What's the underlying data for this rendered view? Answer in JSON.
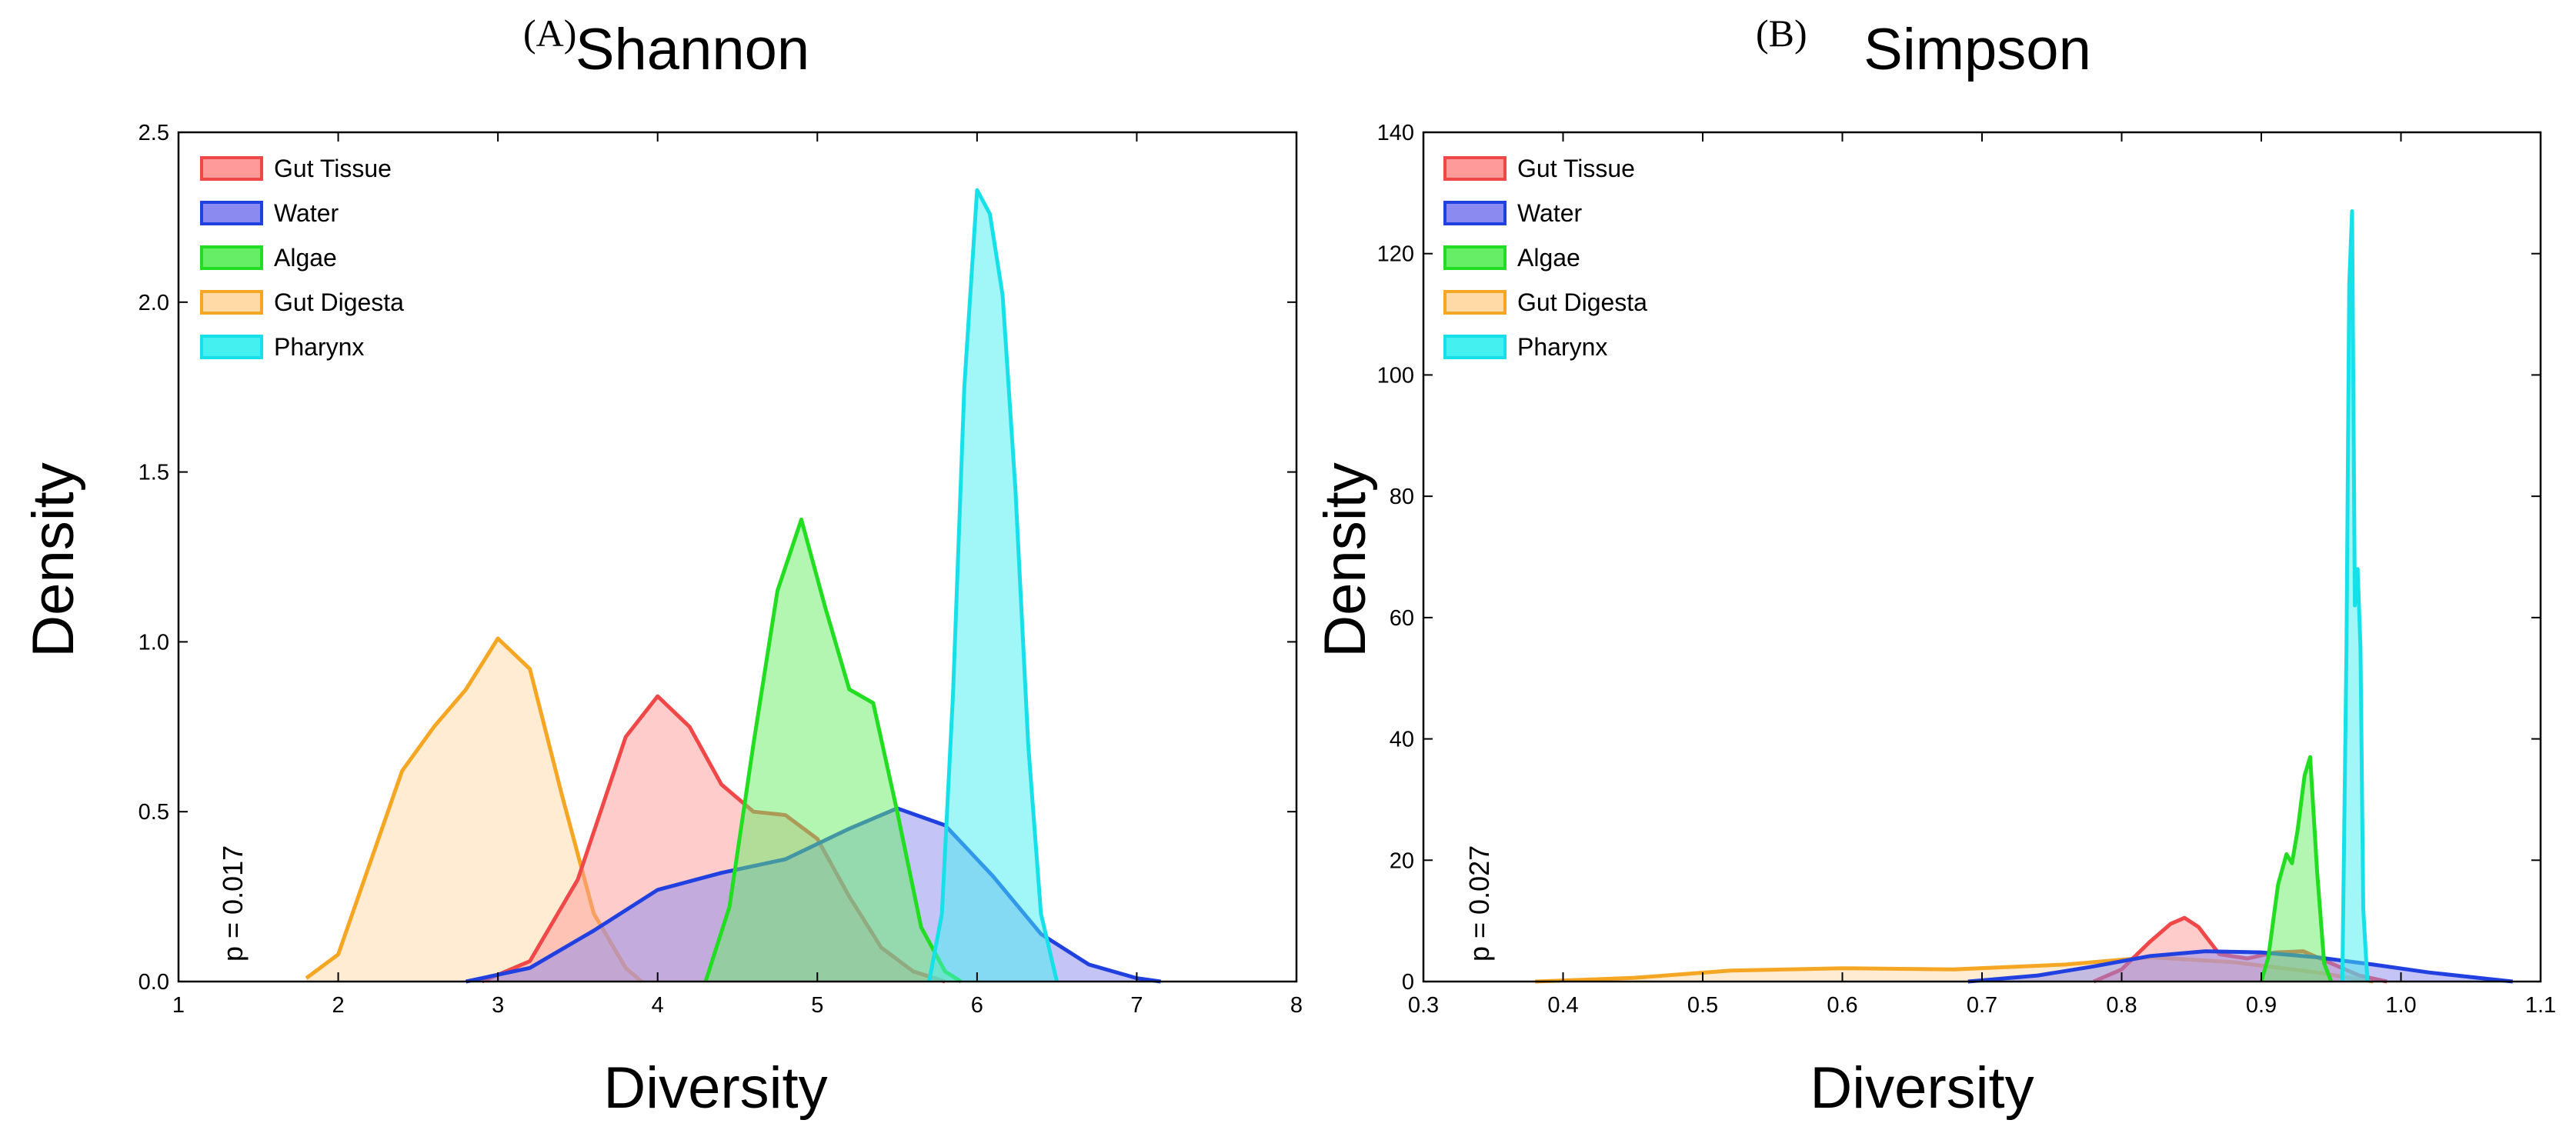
{
  "chart_data": [
    {
      "type": "area",
      "panel_label": "(A)",
      "title": "Shannon",
      "xlabel": "Diversity",
      "ylabel": "Density",
      "xlim": [
        1,
        8
      ],
      "ylim": [
        0,
        2.5
      ],
      "xticks": [
        "1",
        "2",
        "3",
        "4",
        "5",
        "6",
        "7",
        "8"
      ],
      "yticks": [
        "0.0",
        "0.5",
        "1.0",
        "1.5",
        "2.0",
        "2.5"
      ],
      "annotation": "p = 0.017",
      "legend_position": "top-left",
      "series": [
        {
          "name": "Gut Digesta",
          "line": "#f5a623",
          "fill": "#ffd9a6",
          "x": [
            1.8,
            2.0,
            2.2,
            2.4,
            2.6,
            2.8,
            3.0,
            3.2,
            3.4,
            3.6,
            3.8,
            3.9
          ],
          "y": [
            0.01,
            0.08,
            0.35,
            0.62,
            0.75,
            0.86,
            1.01,
            0.92,
            0.55,
            0.2,
            0.04,
            0.0
          ]
        },
        {
          "name": "Gut Tissue",
          "line": "#f04848",
          "fill": "#ff9a9a",
          "x": [
            2.9,
            3.2,
            3.5,
            3.8,
            4.0,
            4.2,
            4.4,
            4.6,
            4.8,
            5.0,
            5.2,
            5.4,
            5.6,
            5.8
          ],
          "y": [
            0.0,
            0.06,
            0.3,
            0.72,
            0.84,
            0.75,
            0.58,
            0.5,
            0.49,
            0.42,
            0.25,
            0.1,
            0.03,
            0.0
          ]
        },
        {
          "name": "Water",
          "line": "#2040e0",
          "fill": "#8a8af0",
          "x": [
            2.8,
            3.2,
            3.6,
            4.0,
            4.4,
            4.8,
            5.2,
            5.5,
            5.8,
            6.1,
            6.4,
            6.7,
            7.0,
            7.15
          ],
          "y": [
            0.0,
            0.04,
            0.15,
            0.27,
            0.32,
            0.36,
            0.45,
            0.51,
            0.46,
            0.31,
            0.14,
            0.05,
            0.01,
            0.0
          ]
        },
        {
          "name": "Algae",
          "line": "#22dd22",
          "fill": "#66ee66",
          "x": [
            4.3,
            4.45,
            4.6,
            4.75,
            4.9,
            5.05,
            5.2,
            5.35,
            5.5,
            5.65,
            5.8,
            5.9
          ],
          "y": [
            0.0,
            0.22,
            0.7,
            1.15,
            1.36,
            1.1,
            0.86,
            0.82,
            0.5,
            0.16,
            0.03,
            0.0
          ]
        },
        {
          "name": "Pharynx",
          "line": "#18e0e8",
          "fill": "#44f0f0",
          "x": [
            5.7,
            5.78,
            5.85,
            5.92,
            6.0,
            6.08,
            6.16,
            6.24,
            6.32,
            6.4,
            6.5
          ],
          "y": [
            0.0,
            0.2,
            0.85,
            1.75,
            2.33,
            2.26,
            2.02,
            1.45,
            0.7,
            0.2,
            0.0
          ]
        }
      ]
    },
    {
      "type": "area",
      "panel_label": "(B)",
      "title": "Simpson",
      "xlabel": "Diversity",
      "ylabel": "Density",
      "xlim": [
        0.3,
        1.1
      ],
      "ylim": [
        0,
        140
      ],
      "xticks": [
        "0.3",
        "0.4",
        "0.5",
        "0.6",
        "0.7",
        "0.8",
        "0.9",
        "1.0",
        "1.1"
      ],
      "yticks": [
        "0",
        "20",
        "40",
        "60",
        "80",
        "100",
        "120",
        "140"
      ],
      "annotation": "p = 0.027",
      "legend_position": "top-left",
      "series": [
        {
          "name": "Gut Digesta",
          "line": "#f5a623",
          "fill": "#ffd9a6",
          "x": [
            0.38,
            0.45,
            0.52,
            0.6,
            0.68,
            0.76,
            0.82,
            0.88,
            0.94,
            0.98
          ],
          "y": [
            0.0,
            0.6,
            1.8,
            2.2,
            2.0,
            2.8,
            4.0,
            3.2,
            1.5,
            0.0
          ]
        },
        {
          "name": "Gut Tissue",
          "line": "#f04848",
          "fill": "#ff9a9a",
          "x": [
            0.78,
            0.8,
            0.82,
            0.835,
            0.845,
            0.855,
            0.87,
            0.89,
            0.91,
            0.93,
            0.95,
            0.97,
            0.99
          ],
          "y": [
            0.0,
            2.0,
            6.5,
            9.5,
            10.5,
            9.0,
            4.5,
            3.8,
            4.8,
            5.0,
            3.0,
            1.0,
            0.0
          ]
        },
        {
          "name": "Water",
          "line": "#2040e0",
          "fill": "#8a8af0",
          "x": [
            0.69,
            0.74,
            0.78,
            0.82,
            0.86,
            0.9,
            0.94,
            0.98,
            1.02,
            1.06,
            1.08
          ],
          "y": [
            0.0,
            1.0,
            2.5,
            4.2,
            5.0,
            4.8,
            4.0,
            2.8,
            1.5,
            0.5,
            0.0
          ]
        },
        {
          "name": "Algae",
          "line": "#22dd22",
          "fill": "#66ee66",
          "x": [
            0.9,
            0.905,
            0.912,
            0.918,
            0.922,
            0.926,
            0.931,
            0.935,
            0.94,
            0.945,
            0.95
          ],
          "y": [
            0.0,
            4.0,
            16.0,
            21.0,
            19.5,
            25.0,
            34.0,
            37.0,
            18.0,
            3.0,
            0.0
          ]
        },
        {
          "name": "Pharynx",
          "line": "#18e0e8",
          "fill": "#44f0f0",
          "x": [
            0.958,
            0.961,
            0.963,
            0.965,
            0.967,
            0.969,
            0.971,
            0.973,
            0.976
          ],
          "y": [
            0.0,
            55.0,
            115.0,
            127.0,
            62.0,
            68.0,
            55.0,
            12.0,
            0.0
          ]
        }
      ]
    }
  ]
}
